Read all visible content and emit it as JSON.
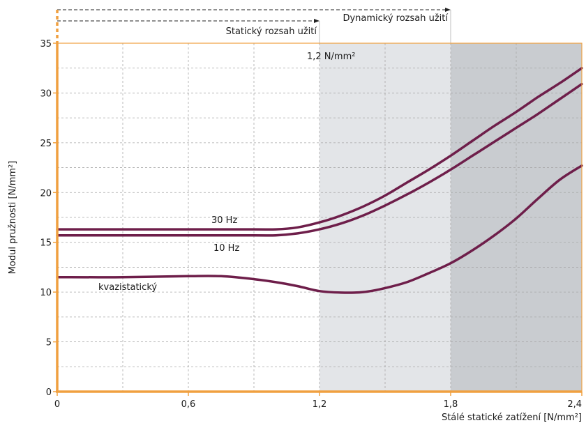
{
  "chart_data": {
    "type": "line",
    "title": "",
    "xlabel": "Stálé statické zatížení [N/mm²]",
    "ylabel": "Modul pružnosti  [N/mm²]",
    "xlim": [
      0,
      2.4
    ],
    "ylim": [
      0,
      35
    ],
    "x_ticks": [
      0,
      0.6,
      1.2,
      1.8,
      2.4
    ],
    "x_tick_labels": [
      "0",
      "0,6",
      "1,2",
      "1,8",
      "2,4"
    ],
    "y_ticks": [
      0,
      5,
      10,
      15,
      20,
      25,
      30,
      35
    ],
    "y_tick_labels": [
      "0",
      "5",
      "10",
      "15",
      "20",
      "25",
      "30",
      "35"
    ],
    "grid": true,
    "colors": {
      "axis": "#f0a040",
      "line": "#6e1e4a",
      "grid": "#a8a8a8",
      "static_region": "#e3e5e8",
      "dynamic_region": "#c9ccd0"
    },
    "regions": [
      {
        "from": 1.2,
        "to": 1.8,
        "label": "1,2 N/mm²"
      },
      {
        "from": 1.8,
        "to": 2.4
      }
    ],
    "ranges": [
      {
        "label": "Statický rozsah užití",
        "from": 0,
        "to": 1.2
      },
      {
        "label": "Dynamický rozsah užití",
        "from": 0,
        "to": 1.8
      }
    ],
    "series": [
      {
        "name": "30 Hz",
        "x": [
          0,
          0.3,
          0.6,
          0.9,
          1.0,
          1.1,
          1.2,
          1.3,
          1.4,
          1.5,
          1.6,
          1.7,
          1.8,
          1.9,
          2.0,
          2.1,
          2.2,
          2.3,
          2.4
        ],
        "y": [
          16.3,
          16.3,
          16.3,
          16.3,
          16.3,
          16.5,
          17.0,
          17.7,
          18.6,
          19.7,
          21.0,
          22.3,
          23.7,
          25.2,
          26.7,
          28.1,
          29.6,
          31.0,
          32.5
        ]
      },
      {
        "name": "10 Hz",
        "x": [
          0,
          0.3,
          0.6,
          0.9,
          1.0,
          1.1,
          1.2,
          1.3,
          1.4,
          1.5,
          1.6,
          1.7,
          1.8,
          1.9,
          2.0,
          2.1,
          2.2,
          2.3,
          2.4
        ],
        "y": [
          15.7,
          15.7,
          15.7,
          15.7,
          15.7,
          15.9,
          16.3,
          16.9,
          17.7,
          18.7,
          19.8,
          21.0,
          22.3,
          23.7,
          25.1,
          26.5,
          27.9,
          29.4,
          30.9
        ]
      },
      {
        "name": "kvazistatický",
        "x": [
          0,
          0.3,
          0.6,
          0.75,
          0.9,
          1.0,
          1.1,
          1.2,
          1.3,
          1.4,
          1.5,
          1.6,
          1.7,
          1.8,
          1.9,
          2.0,
          2.1,
          2.2,
          2.3,
          2.4
        ],
        "y": [
          11.5,
          11.5,
          11.6,
          11.6,
          11.3,
          11.0,
          10.6,
          10.1,
          9.95,
          10.0,
          10.4,
          11.0,
          11.9,
          12.9,
          14.2,
          15.7,
          17.4,
          19.4,
          21.3,
          22.7
        ]
      }
    ],
    "annotations": [
      "30 Hz",
      "10 Hz",
      "kvazistatický"
    ]
  }
}
